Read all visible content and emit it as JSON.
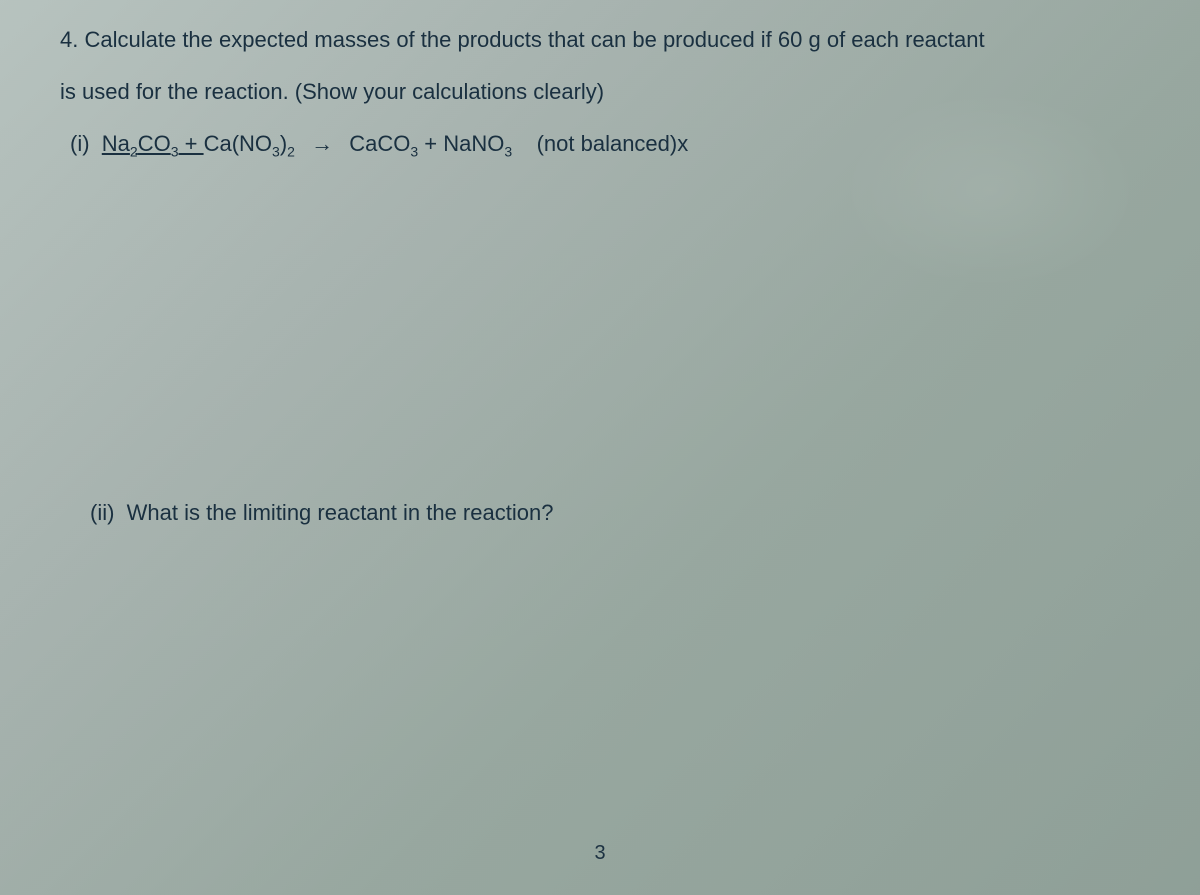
{
  "question": {
    "number": "4.",
    "prompt_line1": "Calculate the expected masses of the products that can be produced if 60 g of each reactant",
    "prompt_line2": "is used for the reaction.  (Show your calculations clearly)"
  },
  "part_i": {
    "label": "(i)",
    "reactant1_base": "Na",
    "reactant1_sub1": "2",
    "reactant1_mid": "CO",
    "reactant1_sub2": "3",
    "plus1": " + ",
    "reactant2_base": "Ca(NO",
    "reactant2_sub1": "3",
    "reactant2_mid": ")",
    "reactant2_sub2": "2",
    "arrow": "→",
    "product1_base": "CaCO",
    "product1_sub": "3",
    "plus2": " + ",
    "product2_base": "NaNO",
    "product2_sub": "3",
    "note": "(not balanced)x"
  },
  "part_ii": {
    "label": "(ii)",
    "text": "What is the limiting reactant in the reaction?"
  },
  "page_number": "3",
  "style": {
    "background_colors": [
      "#b8c4c0",
      "#a8b4b0",
      "#98a8a0",
      "#8fa098"
    ],
    "text_color": "#1a3040",
    "font_size_body": 22,
    "font_size_sub": 14,
    "font_family": "Arial"
  }
}
